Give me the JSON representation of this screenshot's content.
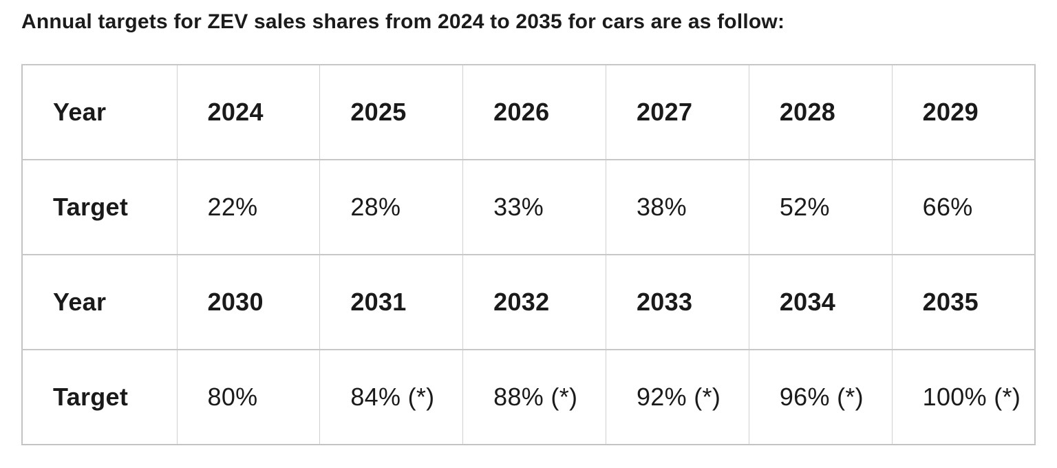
{
  "title": "Annual targets for ZEV sales shares from 2024 to 2035 for cars are as follow:",
  "table": {
    "rows": [
      {
        "label": "Year",
        "cells": [
          "2024",
          "2025",
          "2026",
          "2027",
          "2028",
          "2029"
        ]
      },
      {
        "label": "Target",
        "cells": [
          "22%",
          "28%",
          "33%",
          "38%",
          "52%",
          "66%"
        ]
      },
      {
        "label": "Year",
        "cells": [
          "2030",
          "2031",
          "2032",
          "2033",
          "2034",
          "2035"
        ]
      },
      {
        "label": "Target",
        "cells": [
          "80%",
          "84% (*)",
          "88% (*)",
          "92% (*)",
          "96% (*)",
          "100% (*)"
        ]
      }
    ]
  },
  "colors": {
    "title_text": "#1b1b1b",
    "header_text": "#161616",
    "value_text": "#2d2d2d",
    "border_outer": "#c3c3c3",
    "border_horizontal": "#c7c7c7",
    "border_vertical": "#d0d0d0",
    "background": "#ffffff"
  }
}
